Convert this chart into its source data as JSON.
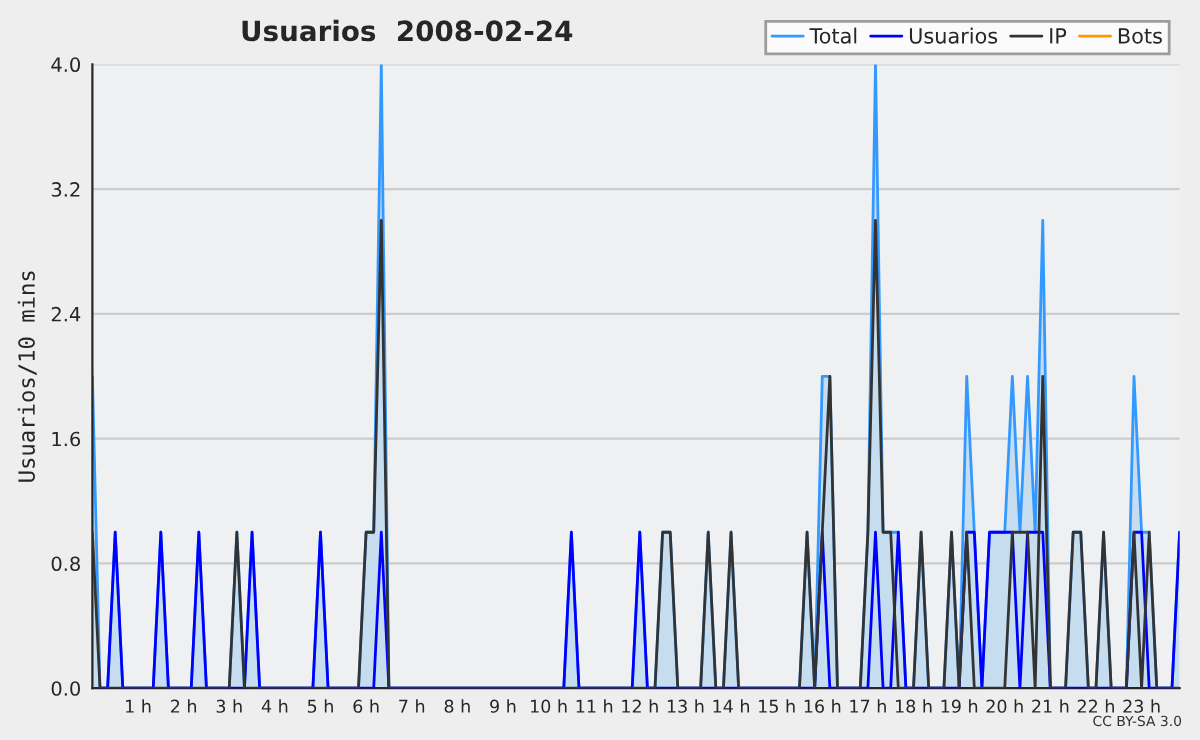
{
  "chart_data": {
    "type": "line",
    "title": "Usuarios  2008-02-24",
    "ylabel": "Usuarios/10 mins",
    "categories": [
      null,
      null,
      null,
      null,
      null,
      null,
      "1 h",
      null,
      null,
      null,
      null,
      null,
      "2 h",
      null,
      null,
      null,
      null,
      null,
      "3 h",
      null,
      null,
      null,
      null,
      null,
      "4 h",
      null,
      null,
      null,
      null,
      null,
      "5 h",
      null,
      null,
      null,
      null,
      null,
      "6 h",
      null,
      null,
      null,
      null,
      null,
      "7 h",
      null,
      null,
      null,
      null,
      null,
      "8 h",
      null,
      null,
      null,
      null,
      null,
      "9 h",
      null,
      null,
      null,
      null,
      null,
      "10 h",
      null,
      null,
      null,
      null,
      null,
      "11 h",
      null,
      null,
      null,
      null,
      null,
      "12 h",
      null,
      null,
      null,
      null,
      null,
      "13 h",
      null,
      null,
      null,
      null,
      null,
      "14 h",
      null,
      null,
      null,
      null,
      null,
      "15 h",
      null,
      null,
      null,
      null,
      null,
      "16 h",
      null,
      null,
      null,
      null,
      null,
      "17 h",
      null,
      null,
      null,
      null,
      null,
      "18 h",
      null,
      null,
      null,
      null,
      null,
      "19 h",
      null,
      null,
      null,
      null,
      null,
      "20 h",
      null,
      null,
      null,
      null,
      null,
      "21 h",
      null,
      null,
      null,
      null,
      null,
      "22 h",
      null,
      null,
      null,
      null,
      null,
      "23 h",
      null,
      null,
      null,
      null,
      null
    ],
    "series": [
      {
        "name": "Total",
        "type": "area",
        "color": "#3399ff",
        "values": [
          2,
          0,
          0,
          1,
          0,
          0,
          0,
          0,
          0,
          1,
          0,
          0,
          0,
          0,
          1,
          0,
          0,
          0,
          0,
          1,
          0,
          1,
          0,
          0,
          0,
          0,
          0,
          0,
          0,
          0,
          1,
          0,
          0,
          0,
          0,
          0,
          1,
          1,
          4,
          0,
          0,
          0,
          0,
          0,
          0,
          0,
          0,
          0,
          0,
          0,
          0,
          0,
          0,
          0,
          0,
          0,
          0,
          0,
          0,
          0,
          0,
          0,
          0,
          1,
          0,
          0,
          0,
          0,
          0,
          0,
          0,
          0,
          1,
          0,
          0,
          1,
          1,
          0,
          0,
          0,
          0,
          1,
          0,
          0,
          1,
          0,
          0,
          0,
          0,
          0,
          0,
          0,
          0,
          0,
          1,
          0,
          2,
          2,
          0,
          0,
          0,
          0,
          1,
          4,
          1,
          1,
          1,
          0,
          0,
          1,
          0,
          0,
          0,
          1,
          0,
          2,
          1,
          0,
          1,
          1,
          1,
          2,
          1,
          2,
          1,
          3,
          0,
          0,
          0,
          1,
          1,
          0,
          0,
          1,
          0,
          0,
          0,
          2,
          1,
          1,
          0,
          0,
          0,
          1
        ]
      },
      {
        "name": "Usuarios",
        "type": "line",
        "color": "#0000ff",
        "values": [
          null,
          0,
          0,
          1,
          0,
          0,
          0,
          0,
          0,
          1,
          0,
          0,
          0,
          0,
          1,
          0,
          0,
          0,
          0,
          0,
          0,
          1,
          0,
          0,
          0,
          0,
          0,
          0,
          0,
          0,
          1,
          0,
          0,
          0,
          0,
          0,
          0,
          0,
          1,
          0,
          0,
          0,
          0,
          0,
          0,
          0,
          0,
          0,
          0,
          0,
          0,
          0,
          0,
          0,
          0,
          0,
          0,
          0,
          0,
          0,
          0,
          0,
          0,
          1,
          0,
          0,
          0,
          0,
          0,
          0,
          0,
          0,
          1,
          0,
          0,
          0,
          0,
          0,
          0,
          0,
          0,
          0,
          0,
          0,
          0,
          0,
          0,
          0,
          0,
          0,
          0,
          0,
          0,
          0,
          0,
          0,
          1,
          0,
          0,
          0,
          0,
          0,
          0,
          1,
          0,
          0,
          1,
          0,
          0,
          0,
          0,
          0,
          0,
          0,
          0,
          1,
          1,
          0,
          1,
          1,
          1,
          1,
          0,
          1,
          1,
          1,
          0,
          0,
          0,
          0,
          0,
          0,
          0,
          0,
          0,
          0,
          0,
          1,
          1,
          0,
          0,
          0,
          0,
          1
        ]
      },
      {
        "name": "IP",
        "type": "line",
        "color": "#333333",
        "values": [
          1,
          0,
          0,
          0,
          0,
          0,
          0,
          0,
          0,
          0,
          0,
          0,
          0,
          0,
          0,
          0,
          0,
          0,
          0,
          1,
          0,
          0,
          0,
          0,
          0,
          0,
          0,
          0,
          0,
          0,
          0,
          0,
          0,
          0,
          0,
          0,
          1,
          1,
          3,
          0,
          0,
          0,
          0,
          0,
          0,
          0,
          0,
          0,
          0,
          0,
          0,
          0,
          0,
          0,
          0,
          0,
          0,
          0,
          0,
          0,
          0,
          0,
          0,
          0,
          0,
          0,
          0,
          0,
          0,
          0,
          0,
          0,
          0,
          0,
          0,
          1,
          1,
          0,
          0,
          0,
          0,
          1,
          0,
          0,
          1,
          0,
          0,
          0,
          0,
          0,
          0,
          0,
          0,
          0,
          1,
          0,
          1,
          2,
          0,
          0,
          0,
          0,
          1,
          3,
          1,
          1,
          0,
          0,
          0,
          1,
          0,
          0,
          0,
          1,
          0,
          1,
          0,
          0,
          0,
          0,
          0,
          1,
          1,
          1,
          0,
          2,
          0,
          0,
          0,
          1,
          1,
          0,
          0,
          1,
          0,
          0,
          0,
          1,
          0,
          1,
          0,
          0,
          0,
          0
        ]
      },
      {
        "name": "Bots",
        "type": "line",
        "color": "#ff9900",
        "values": [
          null,
          null,
          null,
          null,
          null,
          null,
          null,
          null,
          null,
          null,
          null,
          null,
          null,
          null,
          null,
          null,
          null,
          null,
          null,
          null,
          null,
          null,
          null,
          null,
          null,
          null,
          null,
          null,
          null,
          null,
          null,
          null,
          null,
          null,
          null,
          null,
          null,
          null,
          null,
          null,
          null,
          null,
          null,
          null,
          null,
          null,
          null,
          null,
          null,
          null,
          null,
          null,
          null,
          null,
          null,
          null,
          null,
          null,
          null,
          null,
          null,
          null,
          null,
          null,
          null,
          null,
          null,
          null,
          null,
          null,
          null,
          null,
          null,
          null,
          null,
          null,
          null,
          null,
          null,
          null,
          null,
          null,
          null,
          null,
          null,
          null,
          null,
          null,
          null,
          null,
          null,
          null,
          null,
          null,
          null,
          null,
          null,
          null,
          null,
          null,
          null,
          null,
          null,
          null,
          null,
          null,
          null,
          null,
          null,
          null,
          null,
          null,
          null,
          null,
          null,
          null,
          null,
          null,
          null,
          null,
          null,
          null,
          null,
          null,
          null,
          null,
          null,
          null,
          null,
          null,
          null,
          null,
          null,
          null,
          null,
          null,
          null,
          null,
          null,
          null,
          null,
          null,
          null,
          null
        ]
      }
    ],
    "ylim": [
      0,
      4
    ],
    "yticks": [
      {
        "value": 0,
        "label": "0.0"
      },
      {
        "value": 0.8,
        "label": "0.8"
      },
      {
        "value": 1.6,
        "label": "1.6"
      },
      {
        "value": 2.4,
        "label": "2.4"
      },
      {
        "value": 3.2,
        "label": "3.2"
      },
      {
        "value": 4,
        "label": "4.0"
      }
    ],
    "grid": "y",
    "legend": "top right",
    "annotations": [
      "CC BY-SA 3.0"
    ]
  }
}
